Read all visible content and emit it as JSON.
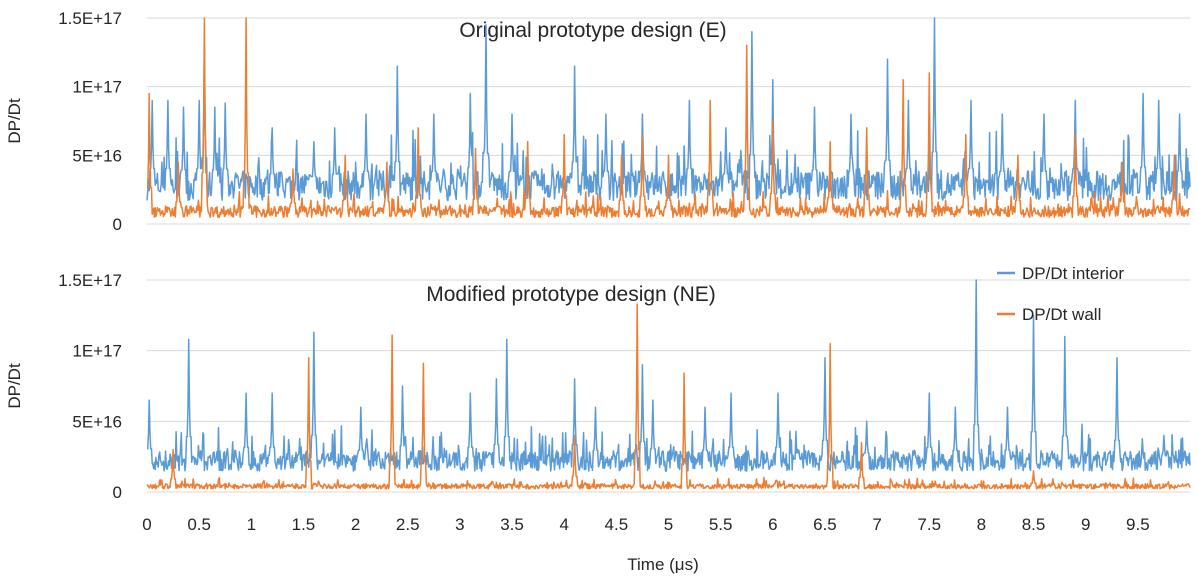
{
  "chart_data": {
    "type": "line",
    "xlabel": "Time (μs)",
    "ylabel": "DP/Dt",
    "xlim": [
      0,
      10
    ],
    "ylim": [
      0,
      1.5e+17
    ],
    "x_ticks": [
      "0",
      "0.5",
      "1",
      "1.5",
      "2",
      "2.5",
      "3",
      "3.5",
      "4",
      "4.5",
      "5",
      "5.5",
      "6",
      "6.5",
      "7",
      "7.5",
      "8",
      "8.5",
      "9",
      "9.5"
    ],
    "y_ticks": [
      "0",
      "5E+16",
      "1E+17",
      "1.5E+17"
    ],
    "y_tick_values": [
      0,
      5e+16,
      1e+17,
      1.5e+17
    ],
    "legend": {
      "position": "right",
      "entries": [
        "DP/Dt interior",
        "DP/Dt wall"
      ]
    },
    "colors": {
      "interior": "#5b9bd5",
      "wall": "#ed7d31",
      "grid": "#d9d9d9",
      "text": "#262626"
    },
    "panels": [
      {
        "title": "Original prototype design (E)",
        "series": [
          {
            "name": "DP/Dt interior",
            "base": 2.8e+16,
            "noise": 1.8e+16,
            "peaks": [
              [
                0.05,
                9e+16
              ],
              [
                0.2,
                9e+16
              ],
              [
                0.35,
                8.5e+16
              ],
              [
                0.5,
                9e+16
              ],
              [
                0.55,
                1.3e+17
              ],
              [
                0.65,
                8.5e+16
              ],
              [
                0.75,
                8.8e+16
              ],
              [
                1.2,
                7e+16
              ],
              [
                1.6,
                6e+16
              ],
              [
                1.8,
                7e+16
              ],
              [
                2.1,
                8e+16
              ],
              [
                2.4,
                1.15e+17
              ],
              [
                2.75,
                8e+16
              ],
              [
                3.1,
                9.5e+16
              ],
              [
                3.25,
                1.45e+17
              ],
              [
                3.5,
                8e+16
              ],
              [
                4.1,
                1.15e+17
              ],
              [
                4.4,
                8e+16
              ],
              [
                4.75,
                8e+16
              ],
              [
                5.2,
                9e+16
              ],
              [
                5.55,
                7e+16
              ],
              [
                5.8,
                1.4e+17
              ],
              [
                6.0,
                1.05e+17
              ],
              [
                6.4,
                8.5e+16
              ],
              [
                6.75,
                8e+16
              ],
              [
                7.1,
                1.2e+17
              ],
              [
                7.3,
                9e+16
              ],
              [
                7.55,
                1.5e+17
              ],
              [
                7.9,
                9e+16
              ],
              [
                8.2,
                8e+16
              ],
              [
                8.6,
                8e+16
              ],
              [
                8.9,
                9e+16
              ],
              [
                9.55,
                9.5e+16
              ],
              [
                9.7,
                9e+16
              ],
              [
                9.9,
                8e+16
              ]
            ]
          },
          {
            "name": "DP/Dt wall",
            "base": 9000000000000000.0,
            "noise": 7000000000000000.0,
            "peaks": [
              [
                0.02,
                9.5e+16
              ],
              [
                0.3,
                4.5e+16
              ],
              [
                0.55,
                1.5e+17
              ],
              [
                0.95,
                1.5e+17
              ],
              [
                1.4,
                4e+16
              ],
              [
                1.9,
                5e+16
              ],
              [
                2.3,
                4.5e+16
              ],
              [
                2.6,
                7e+16
              ],
              [
                3.15,
                5.5e+16
              ],
              [
                3.65,
                6e+16
              ],
              [
                4.0,
                6.5e+16
              ],
              [
                4.55,
                5e+16
              ],
              [
                4.75,
                6.5e+16
              ],
              [
                5.0,
                5e+16
              ],
              [
                5.4,
                9e+16
              ],
              [
                5.75,
                1.3e+17
              ],
              [
                6.0,
                7.5e+16
              ],
              [
                6.55,
                6e+16
              ],
              [
                6.9,
                7e+16
              ],
              [
                7.25,
                1.05e+17
              ],
              [
                7.5,
                1.1e+17
              ],
              [
                7.85,
                6.5e+16
              ],
              [
                8.35,
                5e+16
              ],
              [
                8.9,
                6.5e+16
              ],
              [
                9.35,
                4.5e+16
              ],
              [
                9.85,
                5e+16
              ]
            ]
          }
        ]
      },
      {
        "title": "Modified prototype design (NE)",
        "series": [
          {
            "name": "DP/Dt interior",
            "base": 2.2e+16,
            "noise": 1.2e+16,
            "peaks": [
              [
                0.02,
                6.5e+16
              ],
              [
                0.4,
                1.08e+17
              ],
              [
                0.95,
                7e+16
              ],
              [
                1.2,
                7e+16
              ],
              [
                1.6,
                1.13e+17
              ],
              [
                2.05,
                6e+16
              ],
              [
                2.45,
                7.5e+16
              ],
              [
                3.1,
                7e+16
              ],
              [
                3.35,
                8e+16
              ],
              [
                3.45,
                1.08e+17
              ],
              [
                4.1,
                8e+16
              ],
              [
                4.3,
                6e+16
              ],
              [
                4.75,
                9e+16
              ],
              [
                4.85,
                6.5e+16
              ],
              [
                5.35,
                6e+16
              ],
              [
                5.6,
                7e+16
              ],
              [
                6.05,
                7e+16
              ],
              [
                6.5,
                9.5e+16
              ],
              [
                6.9,
                5e+16
              ],
              [
                7.5,
                7e+16
              ],
              [
                7.75,
                6e+16
              ],
              [
                7.95,
                1.5e+17
              ],
              [
                8.25,
                6e+16
              ],
              [
                8.5,
                1.25e+17
              ],
              [
                8.8,
                1.1e+17
              ],
              [
                9.3,
                9.5e+16
              ],
              [
                9.75,
                4e+16
              ]
            ]
          },
          {
            "name": "DP/Dt wall",
            "base": 4000000000000000.0,
            "noise": 3000000000000000.0,
            "peaks": [
              [
                0.25,
                3e+16
              ],
              [
                1.55,
                9.5e+16
              ],
              [
                2.35,
                1.11e+17
              ],
              [
                2.65,
                9.1e+16
              ],
              [
                4.1,
                4e+16
              ],
              [
                4.7,
                1.33e+17
              ],
              [
                5.15,
                8.4e+16
              ],
              [
                6.55,
                1.05e+17
              ],
              [
                6.85,
                3.5e+16
              ],
              [
                8.5,
                1.5e+16
              ]
            ]
          }
        ]
      }
    ]
  }
}
